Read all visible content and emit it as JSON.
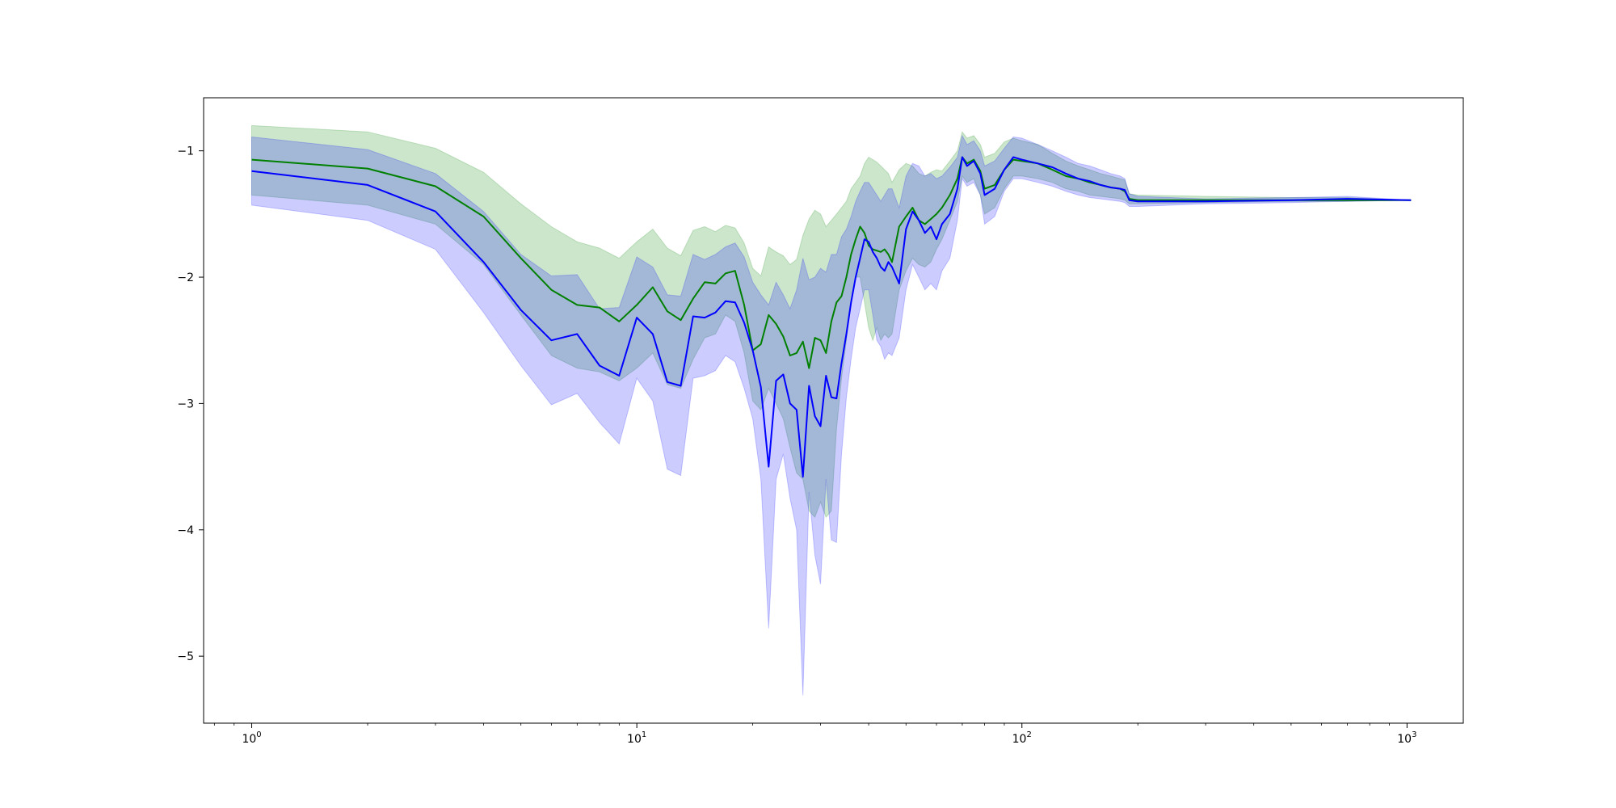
{
  "chart_data": {
    "type": "line",
    "title": "",
    "xlabel": "",
    "ylabel": "",
    "xscale": "log",
    "xlim": [
      0.75,
      1400
    ],
    "ylim": [
      -5.53,
      -0.58
    ],
    "x_ticks": [
      {
        "base": "10",
        "exp": "0",
        "value": 1
      },
      {
        "base": "10",
        "exp": "1",
        "value": 10
      },
      {
        "base": "10",
        "exp": "2",
        "value": 100
      },
      {
        "base": "10",
        "exp": "3",
        "value": 1000
      }
    ],
    "y_ticks": [
      {
        "label": "−1",
        "value": -1
      },
      {
        "label": "−2",
        "value": -2
      },
      {
        "label": "−3",
        "value": -3
      },
      {
        "label": "−4",
        "value": -4
      },
      {
        "label": "−5",
        "value": -5
      }
    ],
    "grid": false,
    "legend": "none",
    "series": [
      {
        "color": "#008000",
        "band_color": "#008000",
        "band_opacity": 0.2,
        "x": [
          1,
          2,
          3,
          4,
          5,
          6,
          7,
          8,
          9,
          10,
          11,
          12,
          13,
          14,
          15,
          16,
          17,
          18,
          19,
          20,
          21,
          22,
          23,
          24,
          25,
          26,
          27,
          28,
          29,
          30,
          31,
          32,
          33,
          34,
          35,
          36,
          37,
          38,
          39,
          40,
          41,
          42,
          43,
          44,
          45,
          46,
          48,
          50,
          52,
          54,
          56,
          58,
          60,
          62,
          65,
          68,
          70,
          72,
          75,
          78,
          80,
          85,
          90,
          95,
          100,
          110,
          120,
          130,
          140,
          150,
          160,
          170,
          180,
          185,
          190,
          200,
          300,
          500,
          700,
          1024
        ],
        "y": [
          -1.07,
          -1.14,
          -1.28,
          -1.52,
          -1.85,
          -2.1,
          -2.22,
          -2.24,
          -2.35,
          -2.22,
          -2.08,
          -2.27,
          -2.34,
          -2.17,
          -2.04,
          -2.05,
          -1.97,
          -1.95,
          -2.22,
          -2.58,
          -2.53,
          -2.3,
          -2.37,
          -2.47,
          -2.62,
          -2.6,
          -2.51,
          -2.72,
          -2.48,
          -2.5,
          -2.6,
          -2.35,
          -2.2,
          -2.15,
          -2.0,
          -1.82,
          -1.7,
          -1.6,
          -1.65,
          -1.75,
          -1.78,
          -1.79,
          -1.8,
          -1.78,
          -1.82,
          -1.88,
          -1.6,
          -1.52,
          -1.45,
          -1.55,
          -1.58,
          -1.54,
          -1.5,
          -1.45,
          -1.35,
          -1.22,
          -1.05,
          -1.1,
          -1.07,
          -1.16,
          -1.3,
          -1.27,
          -1.15,
          -1.07,
          -1.08,
          -1.1,
          -1.15,
          -1.2,
          -1.22,
          -1.25,
          -1.27,
          -1.29,
          -1.3,
          -1.32,
          -1.38,
          -1.39,
          -1.39,
          -1.39,
          -1.39,
          -1.39
        ],
        "y_lower": [
          -1.35,
          -1.43,
          -1.58,
          -1.9,
          -2.3,
          -2.62,
          -2.72,
          -2.75,
          -2.82,
          -2.72,
          -2.6,
          -2.85,
          -2.88,
          -2.65,
          -2.48,
          -2.45,
          -2.3,
          -2.35,
          -2.6,
          -2.98,
          -3.05,
          -2.88,
          -3.0,
          -3.12,
          -3.35,
          -3.55,
          -3.6,
          -3.85,
          -3.9,
          -3.78,
          -3.9,
          -3.85,
          -3.2,
          -2.8,
          -2.5,
          -2.2,
          -2.0,
          -2.0,
          -2.2,
          -2.4,
          -2.5,
          -2.4,
          -2.5,
          -2.45,
          -2.48,
          -2.45,
          -2.1,
          -1.95,
          -1.85,
          -1.9,
          -1.92,
          -1.88,
          -1.78,
          -1.7,
          -1.55,
          -1.4,
          -1.2,
          -1.25,
          -1.22,
          -1.35,
          -1.5,
          -1.45,
          -1.3,
          -1.2,
          -1.2,
          -1.22,
          -1.25,
          -1.3,
          -1.32,
          -1.35,
          -1.36,
          -1.37,
          -1.38,
          -1.39,
          -1.42,
          -1.42,
          -1.41,
          -1.4,
          -1.4,
          -1.39
        ],
        "y_upper": [
          -0.8,
          -0.85,
          -0.98,
          -1.17,
          -1.42,
          -1.6,
          -1.72,
          -1.77,
          -1.85,
          -1.72,
          -1.62,
          -1.77,
          -1.83,
          -1.63,
          -1.6,
          -1.64,
          -1.59,
          -1.61,
          -1.73,
          -1.93,
          -1.99,
          -1.76,
          -1.8,
          -1.83,
          -1.9,
          -1.86,
          -1.67,
          -1.54,
          -1.47,
          -1.5,
          -1.6,
          -1.55,
          -1.5,
          -1.45,
          -1.4,
          -1.3,
          -1.25,
          -1.2,
          -1.1,
          -1.05,
          -1.07,
          -1.09,
          -1.12,
          -1.15,
          -1.18,
          -1.25,
          -1.15,
          -1.1,
          -1.12,
          -1.18,
          -1.2,
          -1.17,
          -1.15,
          -1.16,
          -1.08,
          -1.0,
          -0.85,
          -0.9,
          -0.88,
          -0.95,
          -1.05,
          -1.02,
          -0.93,
          -0.9,
          -0.92,
          -0.95,
          -1.02,
          -1.08,
          -1.12,
          -1.15,
          -1.18,
          -1.2,
          -1.22,
          -1.23,
          -1.34,
          -1.35,
          -1.36,
          -1.37,
          -1.37,
          -1.39
        ]
      },
      {
        "color": "#0000ff",
        "band_color": "#0000ff",
        "band_opacity": 0.2,
        "x": [
          1,
          2,
          3,
          4,
          5,
          6,
          7,
          8,
          9,
          10,
          11,
          12,
          13,
          14,
          15,
          16,
          17,
          18,
          19,
          20,
          21,
          22,
          23,
          24,
          25,
          26,
          27,
          28,
          29,
          30,
          31,
          32,
          33,
          34,
          35,
          36,
          37,
          38,
          39,
          40,
          41,
          42,
          43,
          44,
          45,
          46,
          48,
          50,
          52,
          54,
          56,
          58,
          60,
          62,
          65,
          68,
          70,
          72,
          75,
          78,
          80,
          85,
          90,
          95,
          100,
          110,
          120,
          130,
          140,
          150,
          160,
          170,
          180,
          185,
          190,
          200,
          300,
          500,
          700,
          1024
        ],
        "y": [
          -1.16,
          -1.27,
          -1.48,
          -1.88,
          -2.26,
          -2.5,
          -2.45,
          -2.7,
          -2.78,
          -2.32,
          -2.45,
          -2.83,
          -2.86,
          -2.31,
          -2.32,
          -2.28,
          -2.19,
          -2.2,
          -2.36,
          -2.58,
          -2.87,
          -3.5,
          -2.82,
          -2.77,
          -3.0,
          -3.05,
          -3.58,
          -2.86,
          -3.1,
          -3.18,
          -2.78,
          -2.95,
          -2.96,
          -2.68,
          -2.45,
          -2.2,
          -2.0,
          -1.85,
          -1.7,
          -1.72,
          -1.8,
          -1.85,
          -1.92,
          -1.95,
          -1.88,
          -1.92,
          -2.05,
          -1.62,
          -1.48,
          -1.55,
          -1.65,
          -1.6,
          -1.7,
          -1.58,
          -1.5,
          -1.3,
          -1.05,
          -1.12,
          -1.08,
          -1.18,
          -1.35,
          -1.3,
          -1.15,
          -1.05,
          -1.07,
          -1.1,
          -1.13,
          -1.18,
          -1.22,
          -1.24,
          -1.27,
          -1.29,
          -1.3,
          -1.31,
          -1.39,
          -1.4,
          -1.4,
          -1.39,
          -1.38,
          -1.39
        ],
        "y_lower": [
          -1.43,
          -1.55,
          -1.78,
          -2.28,
          -2.7,
          -3.01,
          -2.92,
          -3.15,
          -3.32,
          -2.8,
          -2.98,
          -3.52,
          -3.57,
          -2.8,
          -2.78,
          -2.74,
          -2.62,
          -2.67,
          -2.88,
          -3.12,
          -3.6,
          -4.78,
          -3.6,
          -3.4,
          -3.75,
          -4.0,
          -5.31,
          -3.7,
          -4.2,
          -4.43,
          -3.6,
          -4.08,
          -4.1,
          -3.4,
          -2.95,
          -2.65,
          -2.4,
          -2.25,
          -2.1,
          -2.1,
          -2.3,
          -2.5,
          -2.55,
          -2.65,
          -2.6,
          -2.62,
          -2.48,
          -2.1,
          -1.9,
          -2.0,
          -2.1,
          -2.05,
          -2.1,
          -1.95,
          -1.85,
          -1.55,
          -1.22,
          -1.28,
          -1.25,
          -1.35,
          -1.58,
          -1.52,
          -1.32,
          -1.22,
          -1.22,
          -1.25,
          -1.28,
          -1.32,
          -1.35,
          -1.37,
          -1.38,
          -1.39,
          -1.4,
          -1.41,
          -1.44,
          -1.44,
          -1.42,
          -1.41,
          -1.4,
          -1.39
        ],
        "y_upper": [
          -0.89,
          -0.99,
          -1.18,
          -1.48,
          -1.82,
          -1.99,
          -1.98,
          -2.25,
          -2.24,
          -1.84,
          -1.92,
          -2.14,
          -2.15,
          -1.82,
          -1.86,
          -1.82,
          -1.76,
          -1.73,
          -1.84,
          -2.04,
          -2.14,
          -2.22,
          -2.04,
          -2.14,
          -2.25,
          -2.1,
          -1.85,
          -2.02,
          -2.0,
          -1.93,
          -1.96,
          -1.82,
          -1.82,
          -1.68,
          -1.62,
          -1.52,
          -1.4,
          -1.32,
          -1.25,
          -1.25,
          -1.3,
          -1.35,
          -1.4,
          -1.35,
          -1.3,
          -1.3,
          -1.45,
          -1.2,
          -1.1,
          -1.12,
          -1.2,
          -1.18,
          -1.22,
          -1.2,
          -1.13,
          -1.05,
          -0.88,
          -0.95,
          -0.92,
          -1.0,
          -1.12,
          -1.08,
          -0.98,
          -0.89,
          -0.9,
          -0.95,
          -1.0,
          -1.05,
          -1.1,
          -1.12,
          -1.15,
          -1.18,
          -1.2,
          -1.22,
          -1.34,
          -1.36,
          -1.38,
          -1.37,
          -1.36,
          -1.39
        ]
      }
    ]
  }
}
